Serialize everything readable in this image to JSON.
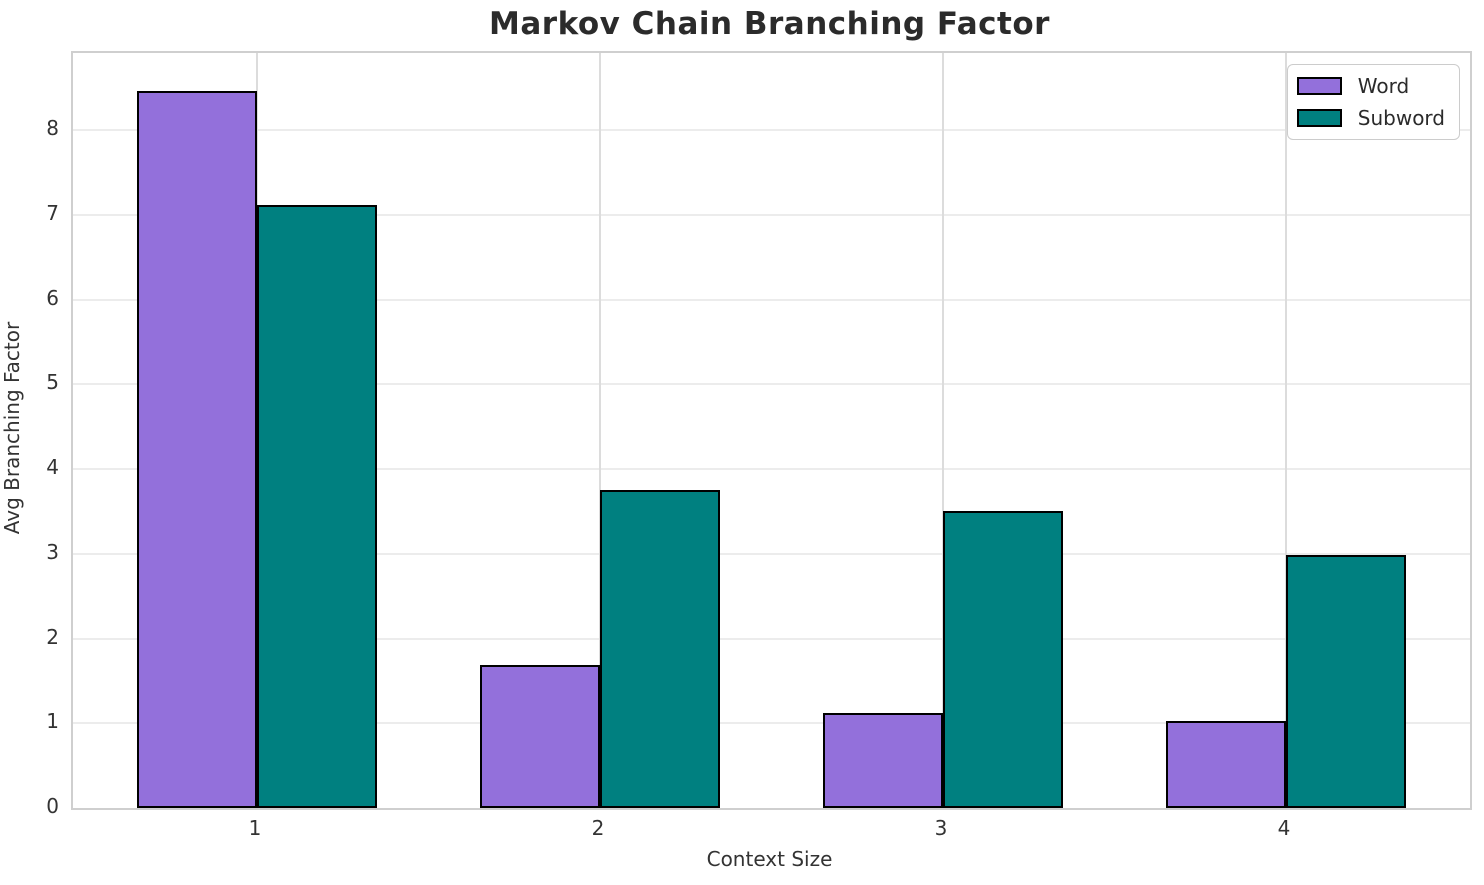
{
  "chart_data": {
    "type": "bar",
    "title": "Markov Chain Branching Factor",
    "xlabel": "Context Size",
    "ylabel": "Avg Branching Factor",
    "categories": [
      "1",
      "2",
      "3",
      "4"
    ],
    "series": [
      {
        "name": "Word",
        "color": "#9370DB",
        "values": [
          8.46,
          1.69,
          1.12,
          1.03
        ]
      },
      {
        "name": "Subword",
        "color": "#008080",
        "values": [
          7.12,
          3.75,
          3.51,
          2.99
        ]
      }
    ],
    "ylim": [
      0,
      8.91
    ],
    "yticks": [
      0,
      1,
      2,
      3,
      4,
      5,
      6,
      7,
      8
    ],
    "grid": true,
    "legend_position": "upper right",
    "bar_edge_color": "#000000",
    "grid_color_horizontal": "#ececec",
    "grid_color_vertical": "#dcdcdc",
    "axis_color": "#cfcfcf",
    "text_color": "#333333",
    "title_color": "#2b2b2b"
  }
}
